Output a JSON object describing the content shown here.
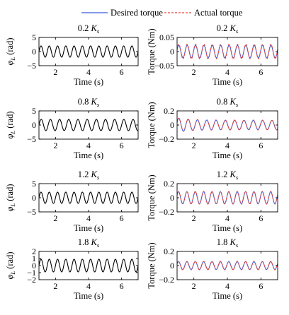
{
  "legend": {
    "items": [
      {
        "label": "Desired torque",
        "color": "#3b5bdb",
        "dash": "solid"
      },
      {
        "label": "Actual torque",
        "color": "#e8473f",
        "dash": "dashed"
      }
    ],
    "placement": "top-center"
  },
  "chart_data": [
    {
      "type": "line",
      "title_num": "0.2",
      "title_sym": "K",
      "title_sub": "s",
      "xlabel": "Time (s)",
      "ylabel_sym": "φ",
      "ylabel_sub": "L",
      "ylabel_unit": " (rad)",
      "xlim": [
        1,
        7
      ],
      "ylim": [
        -5,
        5
      ],
      "xticks": [
        2,
        4,
        6
      ],
      "yticks": [
        -5,
        0,
        5
      ],
      "ytick_labels": [
        "−5",
        "0",
        "5"
      ],
      "grid": false,
      "series": [
        {
          "kind": "sine",
          "amplitude": 2.0,
          "freq_hz": 2.0,
          "phase": 0,
          "color": "#000000",
          "dash": "solid"
        }
      ]
    },
    {
      "type": "line",
      "title_num": "0.2",
      "title_sym": "K",
      "title_sub": "s",
      "xlabel": "Time (s)",
      "ylabel": "Torque (Nm)",
      "xlim": [
        1,
        7
      ],
      "ylim": [
        -0.05,
        0.05
      ],
      "xticks": [
        2,
        4,
        6
      ],
      "yticks": [
        -0.05,
        0,
        0.05
      ],
      "ytick_labels": [
        "−0.05",
        "0",
        "0.05"
      ],
      "grid": false,
      "series": [
        {
          "name": "Desired torque",
          "kind": "sine",
          "amplitude": 0.022,
          "freq_hz": 2.0,
          "phase": 0.3,
          "color": "#3b5bdb",
          "dash": "solid"
        },
        {
          "name": "Actual torque",
          "kind": "sine",
          "amplitude": 0.026,
          "freq_hz": 2.0,
          "phase": 0.3,
          "color": "#e8473f",
          "dash": "dashed"
        }
      ]
    },
    {
      "type": "line",
      "title_num": "0.8",
      "title_sym": "K",
      "title_sub": "s",
      "xlabel": "Time (s)",
      "ylabel_sym": "φ",
      "ylabel_sub": "L",
      "ylabel_unit": " (rad)",
      "xlim": [
        1,
        7
      ],
      "ylim": [
        -5,
        5
      ],
      "xticks": [
        2,
        4,
        6
      ],
      "yticks": [
        -5,
        0,
        5
      ],
      "ytick_labels": [
        "−5",
        "0",
        "5"
      ],
      "grid": false,
      "series": [
        {
          "kind": "sine",
          "amplitude": 2.0,
          "freq_hz": 1.8,
          "phase": 0,
          "color": "#000000",
          "dash": "solid"
        }
      ]
    },
    {
      "type": "line",
      "title_num": "0.8",
      "title_sym": "K",
      "title_sub": "s",
      "xlabel": "Time (s)",
      "ylabel": "Torque (Nm)",
      "xlim": [
        1,
        7
      ],
      "ylim": [
        -0.2,
        0.2
      ],
      "xticks": [
        2,
        4,
        6
      ],
      "yticks": [
        -0.2,
        0,
        0.2
      ],
      "ytick_labels": [
        "−0.2",
        "0",
        "0.2"
      ],
      "grid": false,
      "series": [
        {
          "name": "Desired torque",
          "kind": "sine",
          "amplitude": 0.065,
          "freq_hz": 1.8,
          "phase": 0.4,
          "color": "#3b5bdb",
          "dash": "solid",
          "start_amplitude": 0.1
        },
        {
          "name": "Actual torque",
          "kind": "sine",
          "amplitude": 0.07,
          "freq_hz": 1.8,
          "phase": 0.4,
          "color": "#e8473f",
          "dash": "dashed",
          "start_amplitude": 0.1
        }
      ]
    },
    {
      "type": "line",
      "title_num": "1.2",
      "title_sym": "K",
      "title_sub": "s",
      "xlabel": "Time (s)",
      "ylabel_sym": "φ",
      "ylabel_sub": "L",
      "ylabel_unit": " (rad)",
      "xlim": [
        1,
        7
      ],
      "ylim": [
        -5,
        5
      ],
      "xticks": [
        2,
        4,
        6
      ],
      "yticks": [
        -5,
        0,
        5
      ],
      "ytick_labels": [
        "−5",
        "0",
        "5"
      ],
      "grid": false,
      "series": [
        {
          "kind": "sine",
          "amplitude": 2.0,
          "freq_hz": 2.0,
          "phase": 0,
          "color": "#000000",
          "dash": "solid"
        }
      ]
    },
    {
      "type": "line",
      "title_num": "1.2",
      "title_sym": "K",
      "title_sub": "s",
      "xlabel": "Time (s)",
      "ylabel": "Torque (Nm)",
      "xlim": [
        1,
        7
      ],
      "ylim": [
        -0.2,
        0.2
      ],
      "xticks": [
        2,
        4,
        6
      ],
      "yticks": [
        -0.2,
        0,
        0.2
      ],
      "ytick_labels": [
        "−0.2",
        "0",
        "0.2"
      ],
      "grid": false,
      "series": [
        {
          "name": "Desired torque",
          "kind": "sine",
          "amplitude": 0.085,
          "offset": 0.0,
          "freq_hz": 2.0,
          "phase": 0.5,
          "color": "#3b5bdb",
          "dash": "solid"
        },
        {
          "name": "Actual torque",
          "kind": "sine",
          "amplitude": 0.09,
          "offset": 0.0,
          "freq_hz": 2.0,
          "phase": 0.5,
          "color": "#e8473f",
          "dash": "dashed"
        }
      ]
    },
    {
      "type": "line",
      "title_num": "1.8",
      "title_sym": "K",
      "title_sub": "s",
      "xlabel": "Time (s)",
      "ylabel_sym": "φ",
      "ylabel_sub": "L",
      "ylabel_unit": " (rad)",
      "xlim": [
        1,
        7
      ],
      "ylim": [
        -2,
        2
      ],
      "xticks": [
        2,
        4,
        6
      ],
      "yticks": [
        -2,
        -1,
        0,
        1,
        2
      ],
      "ytick_labels": [
        "−2",
        "−1",
        "0",
        "1",
        "2"
      ],
      "grid": false,
      "series": [
        {
          "kind": "sine",
          "amplitude": 0.9,
          "freq_hz": 2.0,
          "phase": 0,
          "color": "#000000",
          "dash": "solid"
        }
      ]
    },
    {
      "type": "line",
      "title_num": "1.8",
      "title_sym": "K",
      "title_sub": "s",
      "xlabel": "Time (s)",
      "ylabel": "Torque (Nm)",
      "xlim": [
        1,
        7
      ],
      "ylim": [
        -0.2,
        0.2
      ],
      "xticks": [
        2,
        4,
        6
      ],
      "yticks": [
        -0.2,
        0,
        0.2
      ],
      "ytick_labels": [
        "−0.2",
        "0",
        "0.2"
      ],
      "grid": false,
      "series": [
        {
          "name": "Desired torque",
          "kind": "sine",
          "amplitude": 0.055,
          "freq_hz": 2.0,
          "phase": 0.5,
          "color": "#3b5bdb",
          "dash": "solid"
        },
        {
          "name": "Actual torque",
          "kind": "sine",
          "amplitude": 0.06,
          "freq_hz": 2.0,
          "phase": 0.5,
          "color": "#e8473f",
          "dash": "dashed"
        }
      ]
    }
  ]
}
